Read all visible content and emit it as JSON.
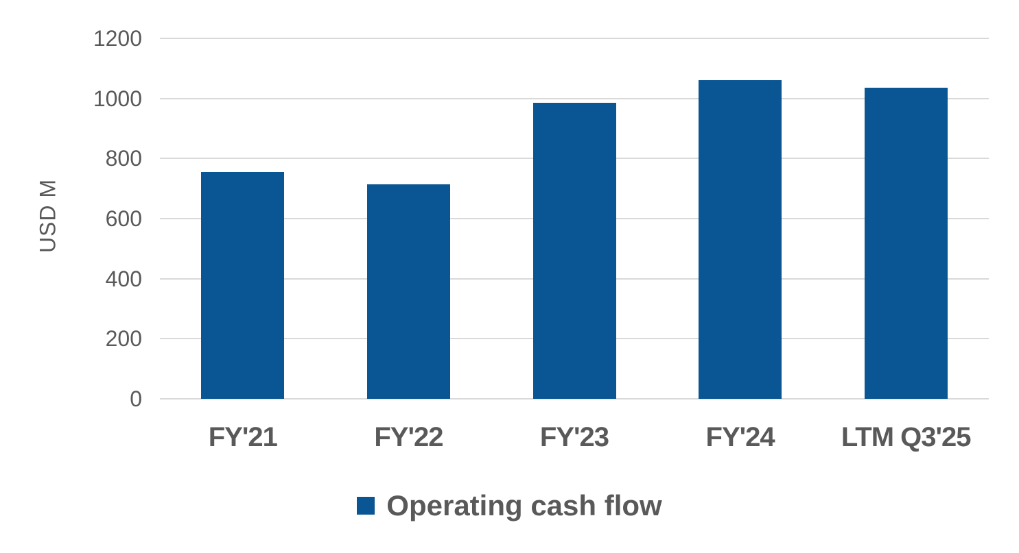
{
  "chart_data": {
    "type": "bar",
    "title": "",
    "categories": [
      "FY'21",
      "FY'22",
      "FY'23",
      "FY'24",
      "LTM Q3'25"
    ],
    "series": [
      {
        "name": "Operating cash flow",
        "values": [
          755,
          715,
          985,
          1060,
          1035
        ]
      }
    ],
    "xlabel": "",
    "ylabel": "USD M",
    "ylim": [
      0,
      1200
    ],
    "yticks": [
      0,
      200,
      400,
      600,
      800,
      1000,
      1200
    ],
    "grid": "horizontal",
    "legend_position": "bottom",
    "colors": {
      "bar": "#0A5594",
      "gridline": "#D9D9D9",
      "axis_text": "#595959",
      "label_text": "#595959"
    }
  }
}
